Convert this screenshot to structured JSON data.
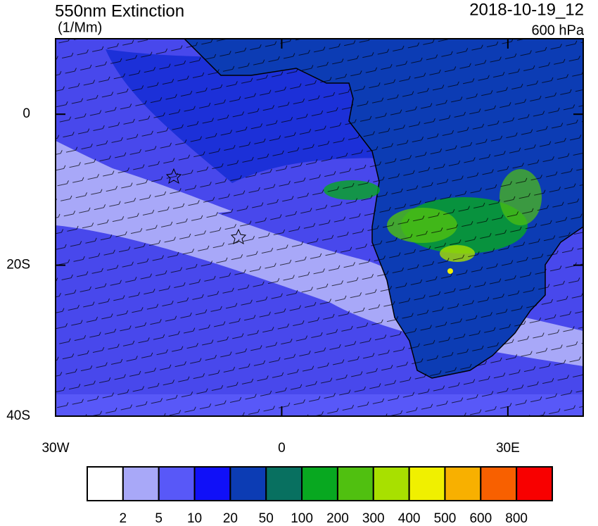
{
  "title": "550nm Extinction",
  "units": "(1/Mm)",
  "date": "2018-10-19_12",
  "level": "600 hPa",
  "map": {
    "xlim": [
      -30,
      40
    ],
    "ylim": [
      -40,
      10
    ],
    "xticks": [
      {
        "value": -30,
        "label": "30W"
      },
      0,
      {
        "value": 30,
        "label": "30E"
      }
    ],
    "yticks": [
      0,
      {
        "value": -20,
        "label": "20S"
      },
      {
        "value": -40,
        "label": "40S"
      }
    ]
  },
  "colorbar": {
    "levels": [
      2,
      5,
      10,
      20,
      50,
      100,
      200,
      300,
      400,
      500,
      600,
      800
    ],
    "colors": [
      "#ffffff",
      "#a8a8f8",
      "#5858f8",
      "#1010f8",
      "#0c3cb4",
      "#087060",
      "#08a820",
      "#50c010",
      "#a8e000",
      "#f0f000",
      "#f8b000",
      "#f86000",
      "#f80000"
    ]
  }
}
